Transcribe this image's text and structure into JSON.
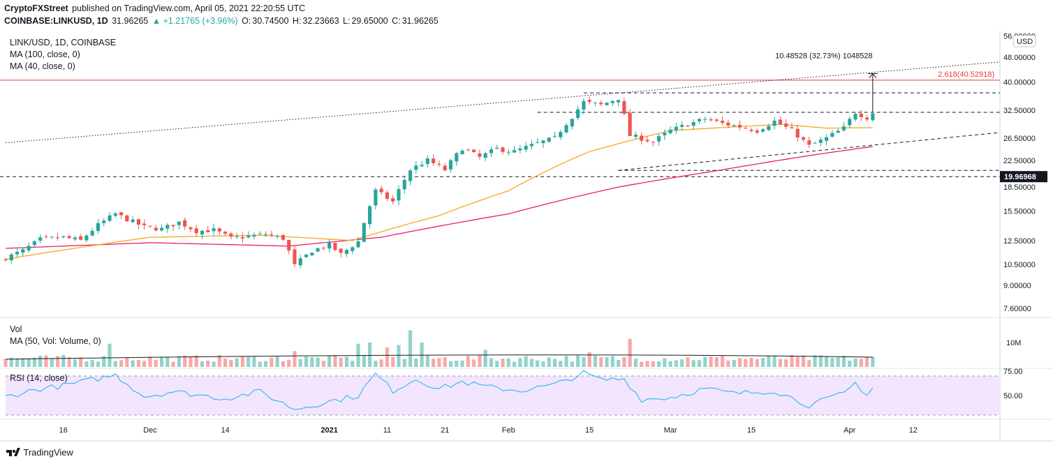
{
  "header": {
    "publisher": "CryptoFXStreet",
    "published_text": "published on TradingView.com, April 05, 2021 22:20:55 UTC",
    "symbol_line": "COINBASE:LINKUSD, 1D",
    "last": "31.96265",
    "change": "▲ +1.21765 (+3.96%)",
    "o_label": "O:",
    "o": "30.74500",
    "h_label": "H:",
    "h": "32.23663",
    "l_label": "L:",
    "l": "29.65000",
    "c_label": "C:",
    "c": "31.96265"
  },
  "legend": {
    "symbol": "LINK/USD, 1D, COINBASE",
    "ma100": "MA (100, close, 0)",
    "ma40": "MA (40, close, 0)",
    "vol": "Vol",
    "vol_ma": "MA (50, Vol: Volume, 0)",
    "rsi": "RSI (14, close)"
  },
  "footer": {
    "brand": "TradingView"
  },
  "colors": {
    "up": "#26a69a",
    "down": "#ef5350",
    "ma40": "#f6a623",
    "ma100": "#e91e63",
    "fib": "#e53935",
    "rsi": "#29b6f6",
    "rsi_band": "#f3e5fd",
    "vol_ma": "#1a1a1a"
  },
  "chart_data": [
    {
      "type": "candlestick",
      "title": "LINK/USD, 1D, COINBASE",
      "scale": "log",
      "ylabel": "USD",
      "price_ticks": [
        "56.00000",
        "48.00000",
        "40.00000",
        "32.50000",
        "26.50000",
        "22.50000",
        "18.50000",
        "15.50000",
        "12.50000",
        "10.50000",
        "9.00000",
        "7.60000"
      ],
      "x_ticks": [
        "16",
        "Dec",
        "14",
        "2021",
        "11",
        "21",
        "Feb",
        "15",
        "Mar",
        "15",
        "Apr",
        "12"
      ],
      "x_tick_dates": [
        "2020-11-16",
        "2020-12-01",
        "2020-12-14",
        "2021-01-01",
        "2021-01-11",
        "2021-01-21",
        "2021-02-01",
        "2021-02-15",
        "2021-03-01",
        "2021-03-15",
        "2021-04-01",
        "2021-04-12"
      ],
      "x_range": [
        "2020-11-06",
        "2021-04-27"
      ],
      "close_anchors": [
        [
          "2020-11-06",
          11.0
        ],
        [
          "2020-11-09",
          11.6
        ],
        [
          "2020-11-12",
          12.6
        ],
        [
          "2020-11-16",
          12.8
        ],
        [
          "2020-11-19",
          12.5
        ],
        [
          "2020-11-22",
          14.0
        ],
        [
          "2020-11-25",
          15.2
        ],
        [
          "2020-11-27",
          14.6
        ],
        [
          "2020-11-30",
          13.8
        ],
        [
          "2020-12-03",
          13.6
        ],
        [
          "2020-12-06",
          14.3
        ],
        [
          "2020-12-09",
          13.4
        ],
        [
          "2020-12-12",
          13.5
        ],
        [
          "2020-12-15",
          12.7
        ],
        [
          "2020-12-18",
          12.9
        ],
        [
          "2020-12-21",
          13.1
        ],
        [
          "2020-12-24",
          12.7
        ],
        [
          "2020-12-26",
          10.4
        ],
        [
          "2020-12-29",
          11.6
        ],
        [
          "2021-01-01",
          12.1
        ],
        [
          "2021-01-03",
          11.3
        ],
        [
          "2021-01-06",
          12.4
        ],
        [
          "2021-01-09",
          18.0
        ],
        [
          "2021-01-12",
          16.6
        ],
        [
          "2021-01-15",
          21.0
        ],
        [
          "2021-01-18",
          22.5
        ],
        [
          "2021-01-21",
          21.0
        ],
        [
          "2021-01-24",
          24.6
        ],
        [
          "2021-01-27",
          23.0
        ],
        [
          "2021-01-30",
          24.5
        ],
        [
          "2021-02-02",
          24.0
        ],
        [
          "2021-02-06",
          25.5
        ],
        [
          "2021-02-09",
          26.5
        ],
        [
          "2021-02-12",
          31.0
        ],
        [
          "2021-02-14",
          34.5
        ],
        [
          "2021-02-17",
          33.8
        ],
        [
          "2021-02-20",
          35.5
        ],
        [
          "2021-02-22",
          27.0
        ],
        [
          "2021-02-26",
          25.8
        ],
        [
          "2021-03-01",
          28.0
        ],
        [
          "2021-03-04",
          29.3
        ],
        [
          "2021-03-07",
          30.5
        ],
        [
          "2021-03-10",
          29.5
        ],
        [
          "2021-03-13",
          28.8
        ],
        [
          "2021-03-16",
          28.0
        ],
        [
          "2021-03-19",
          30.0
        ],
        [
          "2021-03-22",
          28.0
        ],
        [
          "2021-03-25",
          25.0
        ],
        [
          "2021-03-28",
          26.5
        ],
        [
          "2021-03-31",
          28.5
        ],
        [
          "2021-04-02",
          32.0
        ],
        [
          "2021-04-04",
          30.8
        ],
        [
          "2021-04-05",
          31.96
        ]
      ],
      "ma40_anchors": [
        [
          "2020-11-06",
          10.9
        ],
        [
          "2020-12-01",
          12.8
        ],
        [
          "2020-12-20",
          13.0
        ],
        [
          "2021-01-05",
          12.5
        ],
        [
          "2021-01-20",
          15.0
        ],
        [
          "2021-02-01",
          18.0
        ],
        [
          "2021-02-15",
          24.0
        ],
        [
          "2021-03-01",
          28.0
        ],
        [
          "2021-03-20",
          29.3
        ],
        [
          "2021-03-28",
          28.5
        ],
        [
          "2021-04-05",
          28.6
        ]
      ],
      "ma100_anchors": [
        [
          "2020-11-06",
          11.8
        ],
        [
          "2020-12-01",
          12.3
        ],
        [
          "2020-12-25",
          12.0
        ],
        [
          "2021-01-10",
          12.8
        ],
        [
          "2021-02-01",
          15.2
        ],
        [
          "2021-02-20",
          18.5
        ],
        [
          "2021-03-10",
          21.0
        ],
        [
          "2021-03-25",
          23.3
        ],
        [
          "2021-04-05",
          24.9
        ]
      ],
      "levels": [
        {
          "value": 40.52918,
          "label": "2.618(40.52918)",
          "style": "solid"
        },
        {
          "value": 19.96968,
          "label": "19.96968",
          "style": "dashed"
        },
        {
          "value": 36.9,
          "from": "2021-02-14",
          "style": "dashed"
        },
        {
          "value": 32.0,
          "from": "2021-02-06",
          "style": "dashed"
        },
        {
          "value": 20.9,
          "from": "2021-02-20",
          "style": "dashed"
        }
      ],
      "trendlines": [
        {
          "from": [
            "2020-11-06",
            25.6
          ],
          "to": [
            "2021-04-27",
            46.3
          ],
          "style": "dotted"
        },
        {
          "from": [
            "2021-02-20",
            20.9
          ],
          "to": [
            "2021-04-27",
            27.6
          ],
          "style": "dashed"
        }
      ],
      "measure": {
        "from": [
          "2021-04-05",
          32.0
        ],
        "to": [
          "2021-04-05",
          42.5
        ],
        "label": "10.48528 (32.73%) 1048528"
      }
    },
    {
      "type": "bar",
      "title": "Vol",
      "series_name": "Volume",
      "ma_label": "MA (50, Vol: Volume, 0)",
      "tick": "10M",
      "tick_value": 10000000,
      "spikes": [
        [
          "2020-11-24",
          9.5
        ],
        [
          "2020-12-26",
          6.5
        ],
        [
          "2021-01-06",
          9.5
        ],
        [
          "2021-01-08",
          10.0
        ],
        [
          "2021-01-11",
          8.0
        ],
        [
          "2021-01-13",
          9.0
        ],
        [
          "2021-01-15",
          15.0
        ],
        [
          "2021-01-17",
          10.0
        ],
        [
          "2021-01-28",
          7.0
        ],
        [
          "2021-02-15",
          6.0
        ],
        [
          "2021-02-22",
          11.5
        ]
      ],
      "base_million": 3.5,
      "ma_million": 5.0
    },
    {
      "type": "line",
      "title": "RSI (14, close)",
      "ticks": [
        "75.00",
        "50.00"
      ],
      "band": [
        30,
        70
      ],
      "anchors": [
        [
          "2020-11-06",
          49
        ],
        [
          "2020-11-12",
          57
        ],
        [
          "2020-11-16",
          60
        ],
        [
          "2020-11-25",
          71
        ],
        [
          "2020-11-30",
          49
        ],
        [
          "2020-12-05",
          54
        ],
        [
          "2020-12-14",
          47
        ],
        [
          "2020-12-20",
          54
        ],
        [
          "2020-12-26",
          36
        ],
        [
          "2021-01-01",
          44
        ],
        [
          "2021-01-06",
          50
        ],
        [
          "2021-01-09",
          72
        ],
        [
          "2021-01-12",
          55
        ],
        [
          "2021-01-16",
          67
        ],
        [
          "2021-01-20",
          57
        ],
        [
          "2021-01-24",
          64
        ],
        [
          "2021-01-28",
          59
        ],
        [
          "2021-02-03",
          55
        ],
        [
          "2021-02-09",
          61
        ],
        [
          "2021-02-14",
          73
        ],
        [
          "2021-02-17",
          66
        ],
        [
          "2021-02-21",
          67
        ],
        [
          "2021-02-24",
          46
        ],
        [
          "2021-03-01",
          48
        ],
        [
          "2021-03-07",
          57
        ],
        [
          "2021-03-12",
          52
        ],
        [
          "2021-03-19",
          55
        ],
        [
          "2021-03-25",
          40
        ],
        [
          "2021-03-31",
          52
        ],
        [
          "2021-04-02",
          63
        ],
        [
          "2021-04-04",
          51
        ],
        [
          "2021-04-05",
          58
        ]
      ]
    }
  ]
}
